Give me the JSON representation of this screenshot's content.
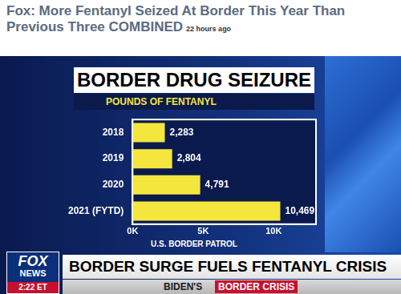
{
  "page": {
    "headline": "Fox: More Fentanyl Seized At Border This Year Than Previous Three COMBINED",
    "time_ago": "22 hours ago",
    "source": "U.S. BORDER PATROL",
    "logo": [
      "FOX",
      "NEWS"
    ],
    "clock": "2:22 ET",
    "banner": "BORDER SURGE FUELS FENTANYL CRISIS",
    "ticker": [
      "BIDEN'S",
      "BORDER CRISIS"
    ]
  },
  "chart_data": {
    "type": "bar",
    "orientation": "horizontal",
    "title": "BORDER DRUG SEIZURE",
    "subtitle": "POUNDS OF FENTANYL",
    "categories": [
      "2018",
      "2019",
      "2020",
      "2021 (FYTD)"
    ],
    "values": [
      2283,
      2804,
      4791,
      10469
    ],
    "value_labels": [
      "2,283",
      "2,804",
      "4,791",
      "10,469"
    ],
    "color": "#f5e63d",
    "xlim": [
      0,
      13000
    ],
    "xticks": [
      {
        "value": 0,
        "label": "0K"
      },
      {
        "value": 5000,
        "label": "5K"
      },
      {
        "value": 10000,
        "label": "10K"
      }
    ],
    "grid": false,
    "data_labels": true
  }
}
